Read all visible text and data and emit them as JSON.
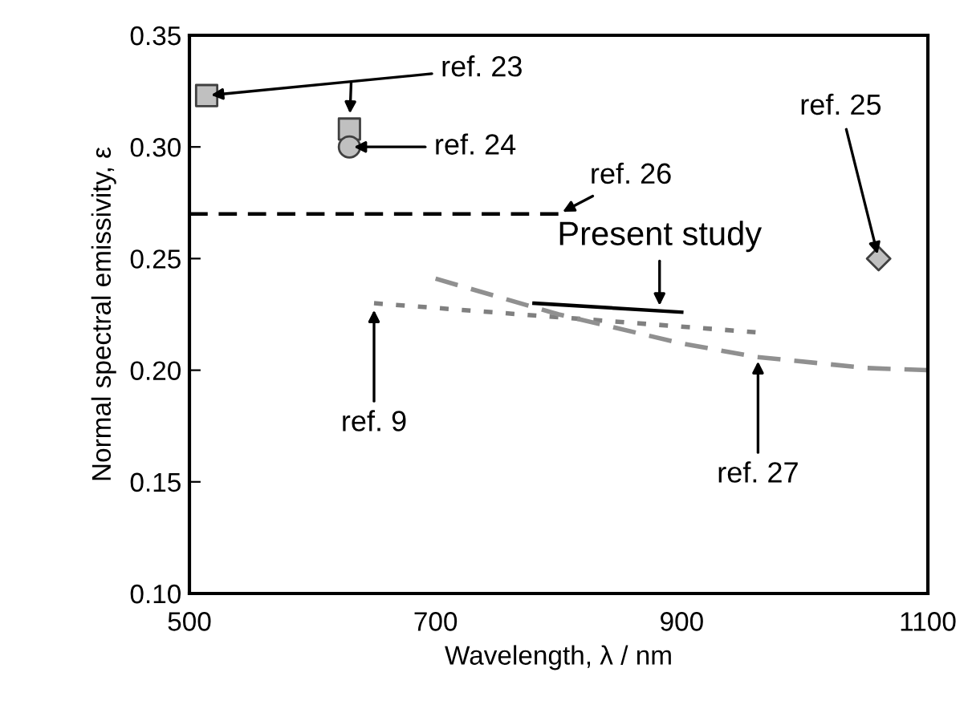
{
  "chart_data": {
    "type": "scatter",
    "xlabel": "Wavelength, λ / nm",
    "ylabel": "Normal spectral emissivity, ε",
    "xlim": [
      500,
      1100
    ],
    "xticks": [
      500,
      700,
      900,
      1100
    ],
    "ylim": [
      0.1,
      0.35
    ],
    "yticks": [
      {
        "value": 0.1,
        "label": "0.10"
      },
      {
        "value": 0.15,
        "label": "0.15"
      },
      {
        "value": 0.2,
        "label": "0.20"
      },
      {
        "value": 0.25,
        "label": "0.25"
      },
      {
        "value": 0.3,
        "label": "0.30"
      },
      {
        "value": 0.35,
        "label": "0.35"
      }
    ],
    "grid": false,
    "series": [
      {
        "marker": "square",
        "color": "#c0c0c0",
        "x": [
          514
        ],
        "values": [
          0.323
        ]
      },
      {
        "marker": "square",
        "color": "#c0c0c0",
        "x": [
          630
        ],
        "values": [
          0.308
        ]
      },
      {
        "marker": "circle",
        "color": "#c0c0c0",
        "x": [
          630
        ],
        "values": [
          0.3
        ]
      },
      {
        "marker": "diamond",
        "color": "#c0c0c0",
        "x": [
          1060
        ],
        "values": [
          0.25
        ]
      },
      {
        "type": "line",
        "line_style": "dashed",
        "color": "#000000",
        "x": [
          500,
          800
        ],
        "values": [
          0.27,
          0.27
        ]
      },
      {
        "type": "line",
        "line_style": "solid",
        "color": "#000000",
        "x": [
          780,
          900
        ],
        "values": [
          0.23,
          0.226
        ]
      },
      {
        "type": "line",
        "line_style": "dotted",
        "color": "#808080",
        "x": [
          650,
          960
        ],
        "values": [
          0.23,
          0.217
        ]
      },
      {
        "type": "line",
        "line_style": "dashed",
        "color": "#909090",
        "x": [
          700,
          800,
          900,
          960,
          1050,
          1100
        ],
        "values": [
          0.241,
          0.225,
          0.212,
          0.206,
          0.201,
          0.2
        ]
      }
    ],
    "annotations": [
      {
        "text": "ref. 23",
        "x": 514,
        "y": 0.323
      },
      {
        "text": "ref. 24",
        "x": 630,
        "y": 0.3
      },
      {
        "text": "ref. 26",
        "x": 800,
        "y": 0.27
      },
      {
        "text": "ref. 25",
        "x": 1060,
        "y": 0.25
      },
      {
        "text": "Present study",
        "x": 882,
        "y": 0.227
      },
      {
        "text": "ref. 9",
        "x": 650,
        "y": 0.229
      },
      {
        "text": "ref. 27",
        "x": 962,
        "y": 0.206
      }
    ]
  }
}
